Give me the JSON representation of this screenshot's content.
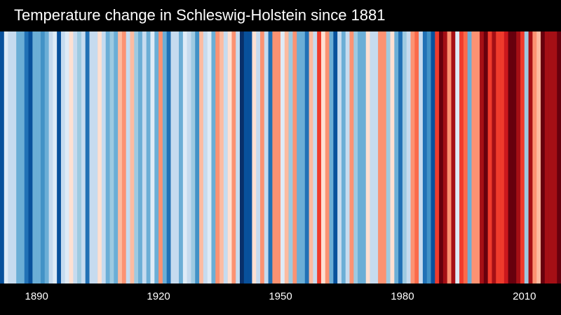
{
  "chart_data": {
    "type": "stripes",
    "title": "Temperature change in Schleswig-Holstein since 1881",
    "x": [
      1881,
      1882,
      1883,
      1884,
      1885,
      1886,
      1887,
      1888,
      1889,
      1890,
      1891,
      1892,
      1893,
      1894,
      1895,
      1896,
      1897,
      1898,
      1899,
      1900,
      1901,
      1902,
      1903,
      1904,
      1905,
      1906,
      1907,
      1908,
      1909,
      1910,
      1911,
      1912,
      1913,
      1914,
      1915,
      1916,
      1917,
      1918,
      1919,
      1920,
      1921,
      1922,
      1923,
      1924,
      1925,
      1926,
      1927,
      1928,
      1929,
      1930,
      1931,
      1932,
      1933,
      1934,
      1935,
      1936,
      1937,
      1938,
      1939,
      1940,
      1941,
      1942,
      1943,
      1944,
      1945,
      1946,
      1947,
      1948,
      1949,
      1950,
      1951,
      1952,
      1953,
      1954,
      1955,
      1956,
      1957,
      1958,
      1959,
      1960,
      1961,
      1962,
      1963,
      1964,
      1965,
      1966,
      1967,
      1968,
      1969,
      1970,
      1971,
      1972,
      1973,
      1974,
      1975,
      1976,
      1977,
      1978,
      1979,
      1980,
      1981,
      1982,
      1983,
      1984,
      1985,
      1986,
      1987,
      1988,
      1989,
      1990,
      1991,
      1992,
      1993,
      1994,
      1995,
      1996,
      1997,
      1998,
      1999,
      2000,
      2001,
      2002,
      2003,
      2004,
      2005,
      2006,
      2007,
      2008,
      2009,
      2010,
      2011,
      2012,
      2013,
      2014,
      2015,
      2016,
      2017,
      2018
    ],
    "values": [
      -0.9,
      -0.1,
      -0.2,
      -0.3,
      -0.5,
      -0.6,
      -0.8,
      -0.9,
      -0.5,
      -0.5,
      -0.7,
      -0.5,
      -0.2,
      -0.1,
      -0.9,
      -0.2,
      -0.1,
      0.1,
      -0.2,
      -0.4,
      -0.2,
      -0.8,
      -0.3,
      -0.2,
      0.1,
      -0.3,
      -0.5,
      -0.4,
      -0.6,
      0.2,
      0.3,
      -0.2,
      0.2,
      -0.4,
      -0.5,
      -0.2,
      -0.6,
      -0.1,
      -0.5,
      0.3,
      -0.6,
      -0.8,
      -0.3,
      -0.2,
      -0.5,
      -0.1,
      -0.3,
      -0.4,
      -0.7,
      0.2,
      -0.3,
      -0.1,
      -0.5,
      0.4,
      0.2,
      -0.3,
      0.1,
      0.3,
      -0.2,
      -1.1,
      -0.9,
      -1.0,
      0.1,
      -0.2,
      0.4,
      -0.3,
      -0.8,
      0.3,
      0.4,
      -0.1,
      0.2,
      -0.4,
      0.3,
      -0.5,
      -0.6,
      -0.8,
      0.2,
      -0.2,
      0.6,
      0.1,
      0.4,
      -0.6,
      -0.9,
      -0.2,
      -0.5,
      -0.3,
      0.4,
      -0.4,
      -0.5,
      -0.6,
      0.1,
      -0.3,
      -0.2,
      0.3,
      0.4,
      -0.4,
      0.1,
      -0.6,
      -0.8,
      -0.4,
      -0.2,
      0.3,
      0.5,
      -0.3,
      -0.8,
      -0.7,
      -0.9,
      0.7,
      1.1,
      1.0,
      0.3,
      0.9,
      -0.1,
      0.6,
      0.5,
      -0.5,
      0.4,
      0.3,
      0.9,
      1.1,
      0.6,
      0.9,
      0.7,
      0.6,
      0.8,
      1.2,
      1.1,
      1.0,
      0.7,
      -0.4,
      0.9,
      0.3,
      0.2,
      1.4,
      1.0,
      0.9,
      0.9,
      1.3
    ],
    "xlim": [
      1881,
      2019
    ],
    "xticks": [
      1890,
      1920,
      1950,
      1980,
      2010
    ],
    "clim": [
      -1.2,
      1.2
    ],
    "colors": [
      "#08306b",
      "#08519c",
      "#2171b5",
      "#4292c6",
      "#6baed6",
      "#9ecae1",
      "#c6dbef",
      "#deebf7",
      "#fee0d2",
      "#fcbba1",
      "#fc9272",
      "#fb6a4a",
      "#ef3b2c",
      "#cb181d",
      "#a50f15",
      "#67000d"
    ]
  }
}
